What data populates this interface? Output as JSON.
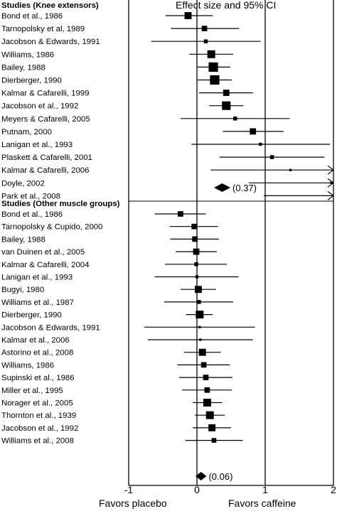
{
  "chart_data": {
    "type": "forest",
    "title": "Effect size and 95% CI",
    "xlim": [
      -1,
      2
    ],
    "x_ticks": [
      "-1",
      "0",
      "1",
      "2"
    ],
    "reference_lines": [
      -1,
      0,
      1,
      2
    ],
    "xlabel_left": "Favors placebo",
    "xlabel_right": "Favors caffeine",
    "groups": [
      {
        "header": "Studies (Knee extensors)",
        "pooled": {
          "estimate": 0.37,
          "lower": 0.25,
          "upper": 0.49,
          "label": "(0.37)"
        },
        "studies": [
          {
            "label": "Bond et al., 1986",
            "estimate": -0.13,
            "lower": -0.46,
            "upper": 0.23,
            "weight": 9
          },
          {
            "label": "Tarnopolsky et al, 1989",
            "estimate": 0.11,
            "lower": -0.38,
            "upper": 0.62,
            "weight": 7
          },
          {
            "label": "Jacobson & Edwards, 1991",
            "estimate": 0.13,
            "lower": -0.67,
            "upper": 0.93,
            "weight": 5
          },
          {
            "label": "Williams, 1986",
            "estimate": 0.21,
            "lower": -0.11,
            "upper": 0.53,
            "weight": 10
          },
          {
            "label": "Bailey, 1988",
            "estimate": 0.24,
            "lower": 0.0,
            "upper": 0.49,
            "weight": 12
          },
          {
            "label": "Dierberger, 1990",
            "estimate": 0.26,
            "lower": 0.01,
            "upper": 0.51,
            "weight": 12
          },
          {
            "label": "Kalmar & Cafarelli, 1999",
            "estimate": 0.43,
            "lower": 0.03,
            "upper": 0.82,
            "weight": 8
          },
          {
            "label": "Jacobson et al., 1992",
            "estimate": 0.43,
            "lower": 0.18,
            "upper": 0.68,
            "weight": 11
          },
          {
            "label": "Meyers & Cafarelli, 2005",
            "estimate": 0.56,
            "lower": -0.24,
            "upper": 1.36,
            "weight": 5
          },
          {
            "label": "Putnam, 2000",
            "estimate": 0.82,
            "lower": 0.38,
            "upper": 1.27,
            "weight": 8
          },
          {
            "label": "Lanigan et al., 1993",
            "estimate": 0.93,
            "lower": -0.08,
            "upper": 1.95,
            "weight": 4
          },
          {
            "label": "Plaskett & Cafarelli, 2001",
            "estimate": 1.1,
            "lower": 0.33,
            "upper": 1.87,
            "weight": 5
          },
          {
            "label": "Kalmar & Cafarelli, 2006",
            "estimate": 1.37,
            "lower": 0.2,
            "upper": 2.0,
            "weight": 3,
            "arrow": true
          },
          {
            "label": "Doyle, 2002",
            "estimate": 1.97,
            "lower": 0.76,
            "upper": 2.0,
            "weight": 3,
            "arrow": true
          },
          {
            "label": "Park et al., 2008",
            "estimate": null,
            "lower": 0.98,
            "upper": 2.0,
            "weight": 0,
            "arrow": true
          }
        ]
      },
      {
        "header": "Studies (Other muscle groups)",
        "pooled": {
          "estimate": 0.06,
          "lower": -0.02,
          "upper": 0.14,
          "label": "(0.06)"
        },
        "studies": [
          {
            "label": "Bond et al., 1986",
            "estimate": -0.24,
            "lower": -0.62,
            "upper": 0.13,
            "weight": 7
          },
          {
            "label": "Tarnopolsky & Cupido, 2000",
            "estimate": -0.04,
            "lower": -0.4,
            "upper": 0.31,
            "weight": 7
          },
          {
            "label": "Bailey, 1988",
            "estimate": -0.03,
            "lower": -0.39,
            "upper": 0.32,
            "weight": 7
          },
          {
            "label": "van Duinen et al., 2005",
            "estimate": -0.01,
            "lower": -0.31,
            "upper": 0.29,
            "weight": 8
          },
          {
            "label": "Kalmar & Cafarelli, 2004",
            "estimate": -0.01,
            "lower": -0.47,
            "upper": 0.44,
            "weight": 5
          },
          {
            "label": "Lanigan et al., 1993",
            "estimate": 0.0,
            "lower": -0.62,
            "upper": 0.61,
            "weight": 4
          },
          {
            "label": "Bugyi, 1980",
            "estimate": 0.02,
            "lower": -0.24,
            "upper": 0.28,
            "weight": 9
          },
          {
            "label": "Williams et al., 1987",
            "estimate": 0.03,
            "lower": -0.48,
            "upper": 0.53,
            "weight": 5
          },
          {
            "label": "Dierberger, 1990",
            "estimate": 0.04,
            "lower": -0.16,
            "upper": 0.23,
            "weight": 10
          },
          {
            "label": "Jacobson & Edwards, 1991",
            "estimate": 0.04,
            "lower": -0.77,
            "upper": 0.85,
            "weight": 3
          },
          {
            "label": "Kalmar et al., 2006",
            "estimate": 0.05,
            "lower": -0.72,
            "upper": 0.82,
            "weight": 3
          },
          {
            "label": "Astorino et al., 2008",
            "estimate": 0.08,
            "lower": -0.19,
            "upper": 0.35,
            "weight": 9
          },
          {
            "label": "Williams, 1986",
            "estimate": 0.1,
            "lower": -0.29,
            "upper": 0.48,
            "weight": 7
          },
          {
            "label": "Supinski et al., 1986",
            "estimate": 0.13,
            "lower": -0.26,
            "upper": 0.52,
            "weight": 7
          },
          {
            "label": "Miller et al., 1995",
            "estimate": 0.15,
            "lower": -0.22,
            "upper": 0.51,
            "weight": 7
          },
          {
            "label": "Norager et al., 2005",
            "estimate": 0.15,
            "lower": -0.06,
            "upper": 0.37,
            "weight": 10
          },
          {
            "label": "Thornton et al., 1939",
            "estimate": 0.19,
            "lower": -0.03,
            "upper": 0.41,
            "weight": 10
          },
          {
            "label": "Jacobson et al., 1992",
            "estimate": 0.22,
            "lower": -0.06,
            "upper": 0.5,
            "weight": 9
          },
          {
            "label": "Williams et al., 2008",
            "estimate": 0.25,
            "lower": -0.17,
            "upper": 0.67,
            "weight": 6
          }
        ]
      }
    ]
  }
}
